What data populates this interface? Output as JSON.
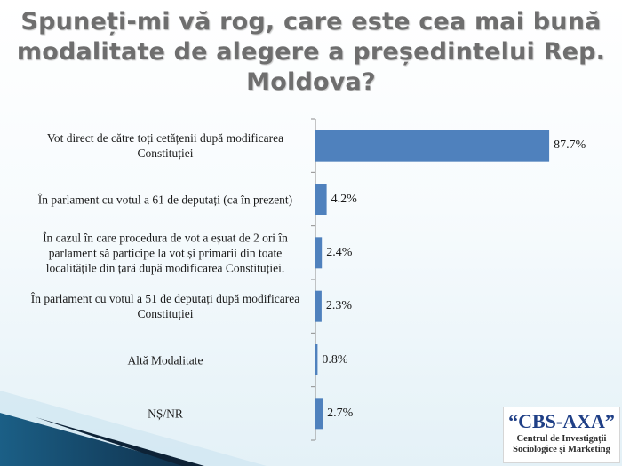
{
  "title": "Spuneți-mi vă rog, care este cea mai bună modalitate de alegere a președintelui Rep. Moldova?",
  "chart_data": {
    "type": "bar",
    "orientation": "horizontal",
    "categories": [
      "Vot direct de către toți cetățenii după modificarea Constituției",
      "În parlament cu votul a 61 de deputați (ca în prezent)",
      "În cazul în care procedura de vot a eșuat de 2 ori în parlament să participe la vot și primarii din toate localitățile din țară după modificarea Constituției.",
      "În parlament cu votul a 51 de deputați după modificarea Constituției",
      "Altă Modalitate",
      "NȘ/NR"
    ],
    "values": [
      87.7,
      4.2,
      2.4,
      2.3,
      0.8,
      2.7
    ],
    "value_labels": [
      "87.7%",
      "4.2%",
      "2.4%",
      "2.3%",
      "0.8%",
      "2.7%"
    ],
    "xlim": [
      0,
      100
    ],
    "bar_color": "#4f81bd",
    "grid": false,
    "legend": "none"
  },
  "logo": {
    "name": "“CBS-AXA”",
    "subtitle_line1": "Centrul de Investigații",
    "subtitle_line2": "Sociologice și Marketing"
  }
}
